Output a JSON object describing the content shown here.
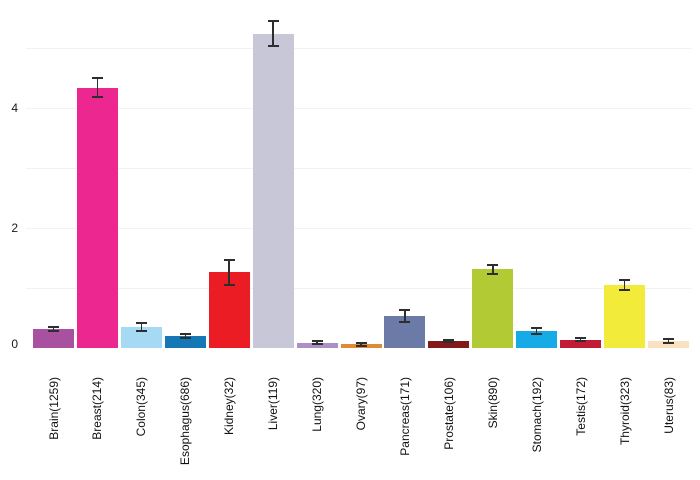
{
  "chart_data": {
    "type": "bar",
    "title": "",
    "xlabel": "",
    "ylabel": "",
    "categories": [
      "Brain(1259)",
      "Breast(214)",
      "Colon(345)",
      "Esophagus(686)",
      "Kidney(32)",
      "Liver(119)",
      "Lung(320)",
      "Ovary(97)",
      "Pancreas(171)",
      "Prostate(106)",
      "Skin(890)",
      "Stomach(192)",
      "Testis(172)",
      "Thyroid(323)",
      "Uterus(83)"
    ],
    "values": [
      0.32,
      4.34,
      0.35,
      0.2,
      1.26,
      5.24,
      0.09,
      0.06,
      0.53,
      0.12,
      1.31,
      0.28,
      0.14,
      1.05,
      0.12
    ],
    "errors": [
      0.03,
      0.16,
      0.06,
      0.03,
      0.21,
      0.21,
      0.02,
      0.02,
      0.1,
      0.02,
      0.08,
      0.05,
      0.02,
      0.08,
      0.03
    ],
    "bar_colors": [
      "#A851A0",
      "#EC2890",
      "#A6D9F4",
      "#1577B5",
      "#EC1C24",
      "#C8C7D8",
      "#AB8FC5",
      "#DE8B36",
      "#6B7AA6",
      "#821A1B",
      "#B2CB35",
      "#16ABE6",
      "#C21B35",
      "#F2EB3A",
      "#FAE2C0"
    ],
    "error_bar_color": "#2e2e2e",
    "gridline_color": "#f2f2f2",
    "gridline_values": [
      1,
      2,
      3,
      4,
      5
    ],
    "ytick_labels": [
      "0",
      "2",
      "4"
    ],
    "ytick_values": [
      0,
      2,
      4
    ],
    "ylim": [
      0,
      5.6
    ],
    "grid": "horizontal",
    "legend": null
  }
}
